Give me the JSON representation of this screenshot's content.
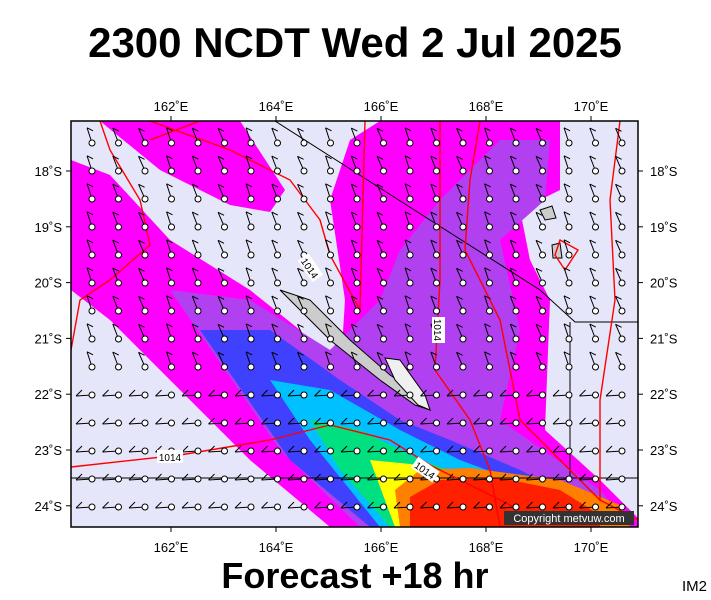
{
  "header": {
    "title": "2300 NCDT Wed 2 Jul 2025"
  },
  "map": {
    "lon_labels": [
      "162˚E",
      "164˚E",
      "166˚E",
      "168˚E",
      "170˚E"
    ],
    "lat_labels": [
      "18˚S",
      "19˚S",
      "20˚S",
      "21˚S",
      "22˚S",
      "23˚S",
      "24˚S"
    ],
    "isobar_labels": [
      "1014",
      "1014",
      "1014",
      "1014"
    ],
    "copyright": "Copyright metvuw.com"
  },
  "footer": {
    "forecast": "Forecast +18 hr",
    "code": "IM2"
  }
}
